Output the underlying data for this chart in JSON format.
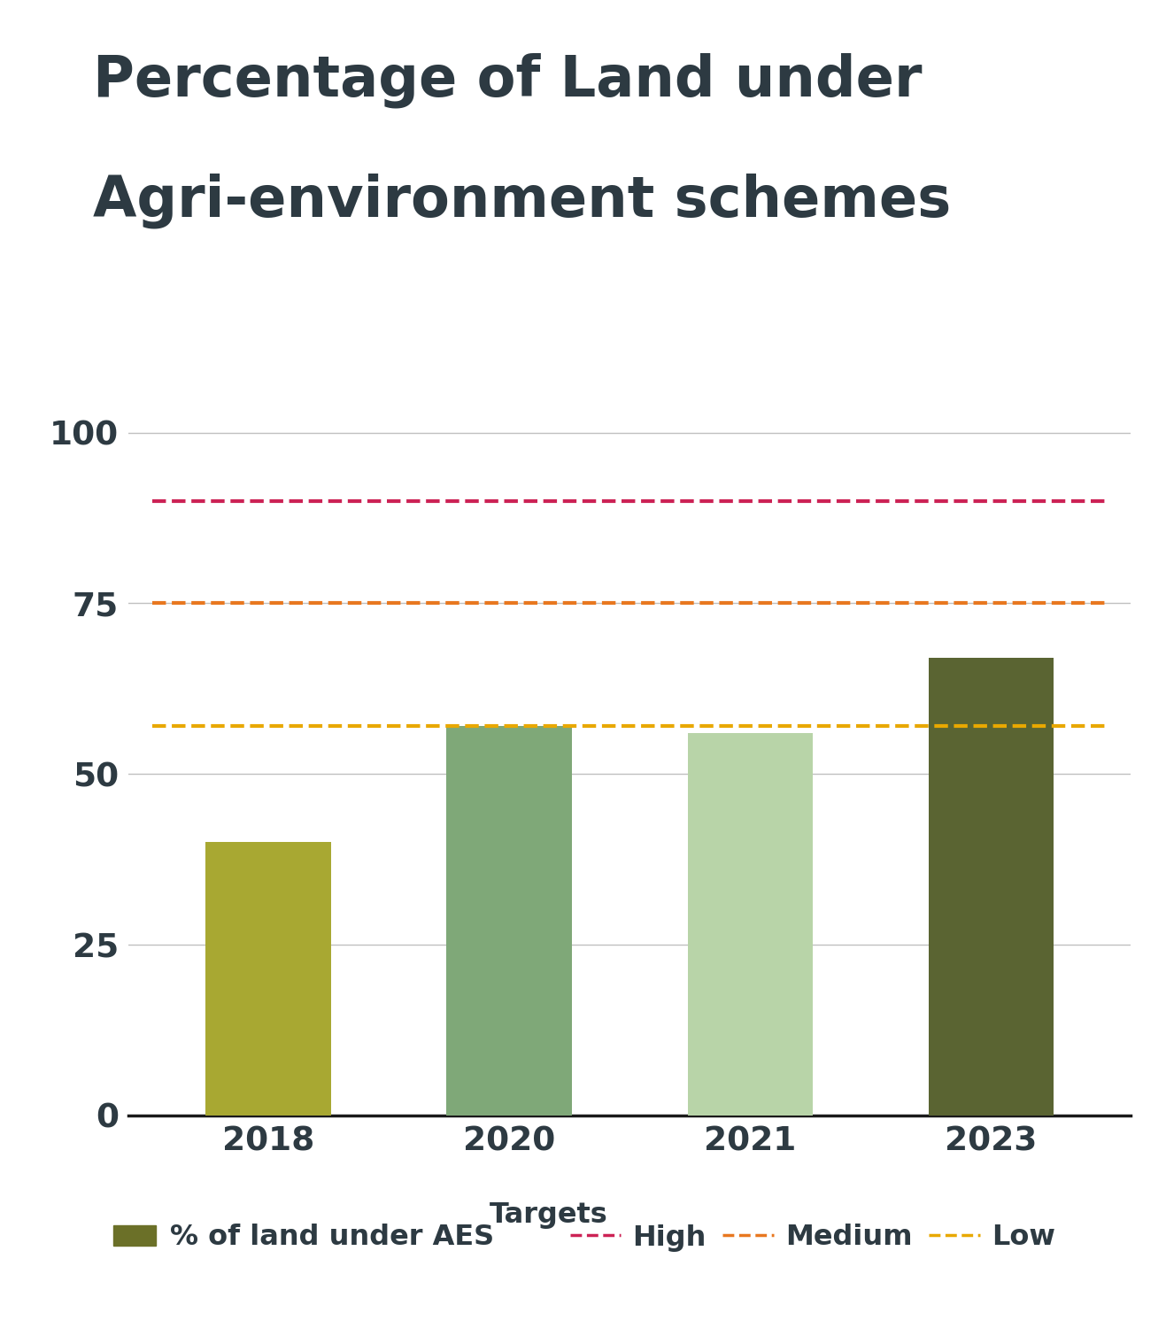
{
  "title_line1": "Percentage of Land under",
  "title_line2": "Agri-environment schemes",
  "categories": [
    "2018",
    "2020",
    "2021",
    "2023"
  ],
  "values": [
    40,
    57,
    56,
    67
  ],
  "bar_colors": [
    "#a8a832",
    "#7fa878",
    "#b8d4a8",
    "#5a6432"
  ],
  "target_high": 90,
  "target_medium": 75,
  "target_low": 57,
  "target_high_color": "#cc2255",
  "target_medium_color": "#e87820",
  "target_low_color": "#e8a800",
  "ylim": [
    0,
    105
  ],
  "yticks": [
    0,
    25,
    50,
    75,
    100
  ],
  "background_color": "#ffffff",
  "title_color": "#2d3a42",
  "tick_color": "#2d3a42",
  "grid_color": "#c0c0c0",
  "axis_color": "#1a1a1a",
  "legend_bar_color": "#6b7028",
  "title_fontsize": 46,
  "tick_fontsize": 27,
  "legend_fontsize": 23
}
